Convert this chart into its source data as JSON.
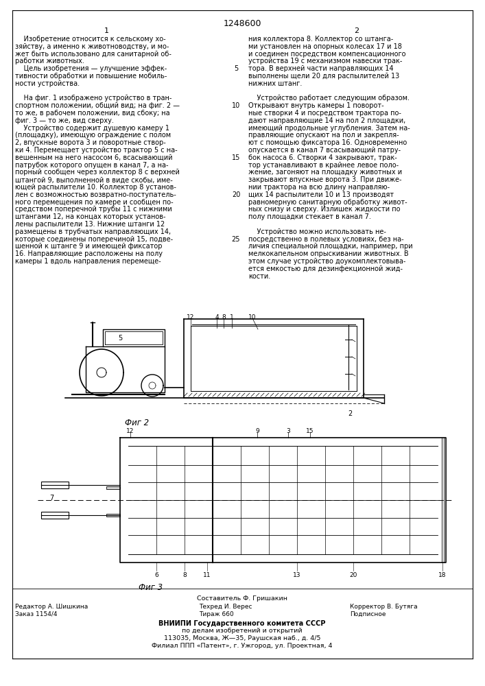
{
  "patent_number": "1248600",
  "col1_number": "1",
  "col2_number": "2",
  "background_color": "#ffffff",
  "text_color": "#000000",
  "col1_lines": [
    "    Изобретение относится к сельскому хо-",
    "зяйству, а именно к животноводству, и мо-",
    "жет быть использовано для санитарной об-",
    "работки животных.",
    "    Цель изобретения — улучшение эффек-",
    "тивности обработки и повышение мобиль-",
    "ности устройства.",
    "",
    "    На фиг. 1 изображено устройство в тран-",
    "спортном положении, общий вид; на фиг. 2 —",
    "то же, в рабочем положении, вид сбоку; на",
    "фиг. 3 — то же, вид сверху.",
    "    Устройство содержит душевую камеру 1",
    "(площадку), имеющую ограждение с полом",
    "2, впускные ворота 3 и поворотные створ-",
    "ки 4. Перемещает устройство трактор 5 с на-",
    "вешенным на него насосом 6, всасывающий",
    "патрубок которого опущен в канал 7, а на-",
    "порный сообщен через коллектор 8 с верхней",
    "штангой 9, выполненной в виде скобы, име-",
    "ющей распылители 10. Коллектор 8 установ-",
    "лен с возможностью возвратно-поступатель-",
    "ного перемещения по камере и сообщен по-",
    "средством поперечной трубы 11 с нижними",
    "штангами 12, на концах которых установ-",
    "лены распылители 13. Нижние штанги 12",
    "размещены в трубчатых направляющих 14,",
    "которые соединены поперечиной 15, подве-",
    "шенной к штанге 9 и имеющей фиксатор",
    "16. Направляющие расположены на полу",
    "камеры 1 вдоль направления перемеще-"
  ],
  "col2_lines": [
    "ния коллектора 8. Коллектор со штанга-",
    "ми установлен на опорных колесах 17 и 18",
    "и соединен посредством компенсационного",
    "устройства 19 с механизмом навески трак-",
    "тора. В верхней части направляющих 14",
    "выполнены щели 20 для распылителей 13",
    "нижних штанг.",
    "",
    "    Устройство работает следующим образом.",
    "Открывают внутрь камеры 1 поворот-",
    "ные створки 4 и посредством трактора по-",
    "дают направляющие 14 на пол 2 площадки,",
    "имеющий продольные углубления. Затем на-",
    "правляющие опускают на пол и закрепля-",
    "ют с помощью фиксатора 16. Одновременно",
    "опускается в канал 7 всасывающий патру-",
    "бок насоса 6. Створки 4 закрывают, трак-",
    "тор устанавливают в крайнее левое поло-",
    "жение, загоняют на площадку животных и",
    "закрывают впускные ворота 3. При движе-",
    "нии трактора на всю длину направляю-",
    "щих 14 распылители 10 и 13 производят",
    "равномерную санитарную обработку живот-",
    "ных снизу и сверху. Излишек жидкости по",
    "полу площадки стекает в канал 7.",
    "",
    "    Устройство можно использовать не-",
    "посредственно в полевых условиях, без на-",
    "личия специальной площадки, например, при",
    "мелкокапельном опрыскивании животных. В",
    "этом случае устройство доукомплектовыва-",
    "ется емкостью для дезинфекционной жид-",
    "кости."
  ],
  "line_numbers": [
    "5",
    "10",
    "15",
    "20",
    "25"
  ],
  "line_number_rows": [
    4,
    9,
    16,
    21,
    27
  ],
  "fig2_caption": "Фиг 2",
  "fig3_caption": "Фиг 3",
  "footer_composer": "Составитель Ф. Гришакин",
  "footer_editor": "Редактор А. Шишкина",
  "footer_techred": "Техред И. Верес",
  "footer_corrector": "Корректор В. Бутяга",
  "footer_order": "Заказ 1154/4",
  "footer_print": "Тираж 660",
  "footer_signed": "Подписное",
  "footer_vniiipi": "ВНИИПИ Государственного комитета СССР",
  "footer_affairs": "по делам изобретений и открытий",
  "footer_address": "113035, Москва, Ж—35, Раушская наб., д. 4/5",
  "footer_branch": "Филиал ППП «Патент», г. Ужгород, ул. Проектная, 4"
}
